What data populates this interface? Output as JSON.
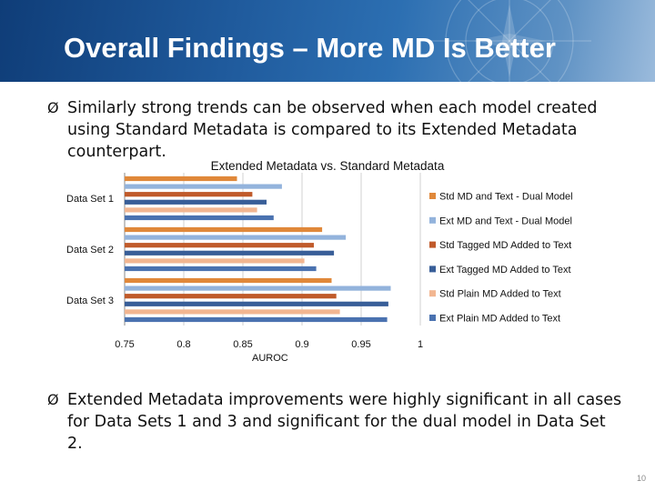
{
  "slide": {
    "title": "Overall Findings – More MD Is Better",
    "bullet_marker": "Ø",
    "bullets": [
      "Similarly strong trends can be observed when each model created using Standard Metadata is compared to its Extended Metadata counterpart.",
      "Extended Metadata improvements were highly significant in all cases for Data Sets 1 and 3 and significant for the dual model in Data Set 2."
    ],
    "page_number": "10"
  },
  "chart_data": {
    "type": "bar",
    "orientation": "horizontal",
    "title": "Extended Metadata vs. Standard Metadata",
    "xlabel": "AUROC",
    "ylabel": "",
    "categories": [
      "Data Set 1",
      "Data Set 2",
      "Data Set 3"
    ],
    "xlim": [
      0.75,
      1
    ],
    "xticks": [
      "0.75",
      "0.8",
      "0.85",
      "0.9",
      "0.95",
      "1"
    ],
    "grid": true,
    "legend_position": "right",
    "series": [
      {
        "name": "Std MD and Text - Dual Model",
        "color": "#E0883A",
        "values": [
          0.845,
          0.917,
          0.925
        ]
      },
      {
        "name": "Ext MD and Text - Dual Model",
        "color": "#93B3DC",
        "values": [
          0.883,
          0.937,
          0.975
        ]
      },
      {
        "name": "Std Tagged MD Added to Text",
        "color": "#C05A2A",
        "values": [
          0.858,
          0.91,
          0.929
        ]
      },
      {
        "name": "Ext Tagged MD Added to Text",
        "color": "#385E98",
        "values": [
          0.87,
          0.927,
          0.973
        ]
      },
      {
        "name": "Std Plain MD Added to Text",
        "color": "#F2B691",
        "values": [
          0.862,
          0.902,
          0.932
        ]
      },
      {
        "name": "Ext Plain MD Added to Text",
        "color": "#4A72B0",
        "values": [
          0.876,
          0.912,
          0.972
        ]
      }
    ]
  }
}
